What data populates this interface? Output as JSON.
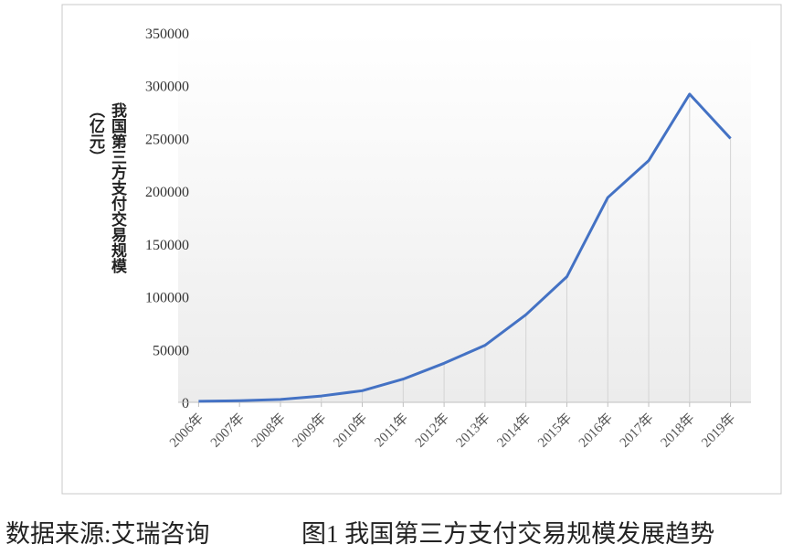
{
  "chart_data": {
    "type": "line",
    "y_label": "我国第三方支付交易规模（亿元）",
    "categories": [
      "2006年",
      "2007年",
      "2008年",
      "2009年",
      "2010年",
      "2011年",
      "2012年",
      "2013年",
      "2014年",
      "2015年",
      "2016年",
      "2017年",
      "2018年",
      "2019年"
    ],
    "values": [
      1000,
      1500,
      2700,
      6000,
      11000,
      22000,
      37000,
      54000,
      83000,
      119000,
      194000,
      229000,
      292000,
      250000
    ],
    "color": "#4472c4",
    "ylim": [
      0,
      350000
    ],
    "yticks": [
      0,
      50000,
      100000,
      150000,
      200000,
      250000,
      300000,
      350000
    ],
    "drop_lines": true
  },
  "caption": {
    "source": "数据来源:艾瑞咨询",
    "figure": "图1 我国第三方支付交易规模发展趋势"
  }
}
